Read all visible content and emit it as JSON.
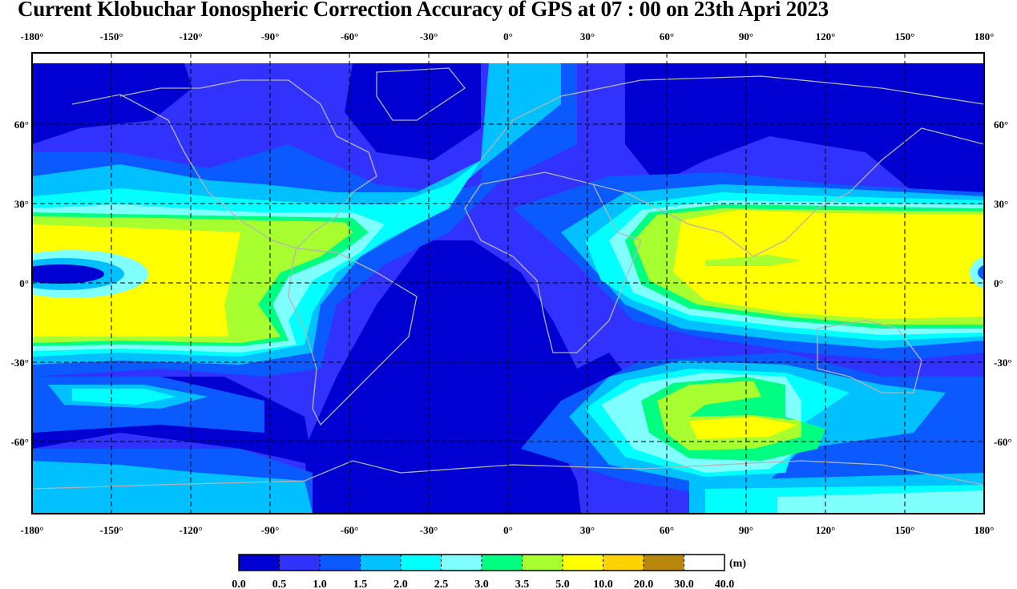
{
  "title": "Current Klobuchar Ionospheric Correction Accuracy of GPS at 07 : 00 on 23th Apri 2023",
  "chart_data": {
    "type": "heatmap",
    "title": "Current Klobuchar Ionospheric Correction Accuracy of GPS at 07 : 00 on 23th Apri 2023",
    "x_ticks": [
      "-180°",
      "-150°",
      "-120°",
      "-90°",
      "-60°",
      "-30°",
      "0°",
      "30°",
      "60°",
      "90°",
      "120°",
      "150°",
      "180°"
    ],
    "x_values": [
      -180,
      -150,
      -120,
      -90,
      -60,
      -30,
      0,
      30,
      60,
      90,
      120,
      150,
      180
    ],
    "y_ticks": [
      "60°",
      "30°",
      "0°",
      "-30°",
      "-60°"
    ],
    "y_values": [
      60,
      30,
      0,
      -30,
      -60
    ],
    "xlim": [
      -180,
      180
    ],
    "ylim": [
      -90,
      90
    ],
    "grid": true,
    "colorbar": {
      "unit": "(m)",
      "labels": [
        "0.0",
        "0.5",
        "1.0",
        "1.5",
        "2.0",
        "2.5",
        "3.0",
        "3.5",
        "5.0",
        "10.0",
        "20.0",
        "30.0",
        "40.0"
      ],
      "colors": [
        "#0000d2",
        "#3232ff",
        "#0a5aff",
        "#00c0ff",
        "#00ffff",
        "#80ffff",
        "#00ff80",
        "#a8ff30",
        "#ffff00",
        "#ffd200",
        "#b8860b",
        "#ffffff"
      ]
    },
    "features": {
      "max_regions": [
        "Pacific equatorial band (-180° to -90°, 25°N to -25°S): 5.0–10.0 m",
        "Indian Ocean / Asia band (50° to 180°, 30°N to -20°S): 5.0–10.0 m",
        "South Indian Ocean (50° to 110°, -35° to -65°): 3.5–5.0 m"
      ],
      "min_regions": [
        "South Atlantic (-60° to 30°): 0.0–0.5 m",
        "Northern high latitudes: 0.0–1.0 m"
      ]
    }
  }
}
